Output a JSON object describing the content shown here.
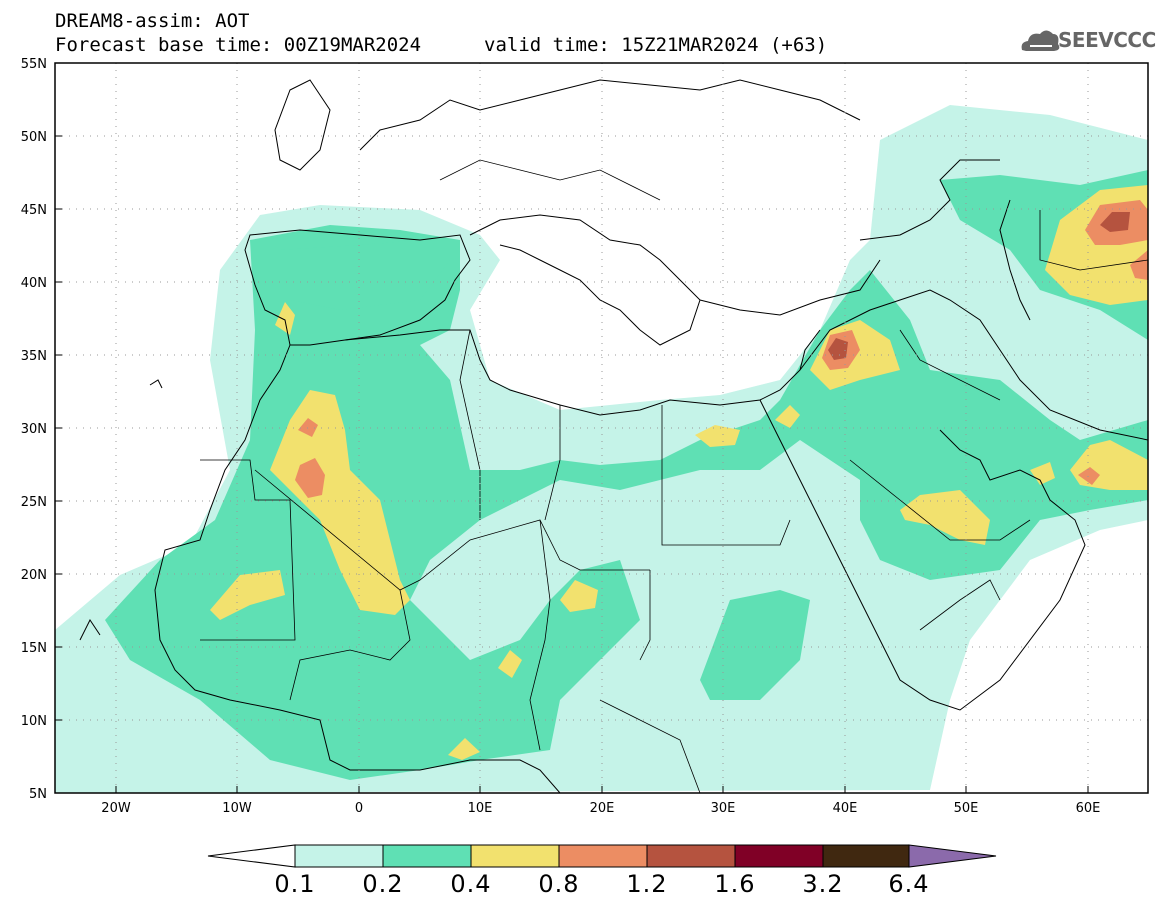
{
  "header": {
    "title": "DREAM8-assim: AOT",
    "base_time": "Forecast base time: 00Z19MAR2024",
    "valid_time": "valid time: 15Z21MAR2024 (+63)"
  },
  "logo": {
    "text": "SEEVCCC",
    "icon": "cloud-icon"
  },
  "map": {
    "lon_range": [
      -25,
      65
    ],
    "lat_range": [
      5,
      55
    ],
    "lon_ticks": [
      "20W",
      "10W",
      "0",
      "10E",
      "20E",
      "30E",
      "40E",
      "50E",
      "60E"
    ],
    "lat_ticks": [
      "55N",
      "50N",
      "45N",
      "40N",
      "35N",
      "30N",
      "25N",
      "20N",
      "15N",
      "10N",
      "5N"
    ],
    "grid": true
  },
  "colorbar": {
    "labels": [
      "0.1",
      "0.2",
      "0.4",
      "0.8",
      "1.2",
      "1.6",
      "3.2",
      "6.4"
    ],
    "colors": [
      "#c5f3e8",
      "#5fe0b4",
      "#f2e16e",
      "#ec8d63",
      "#b5533f",
      "#800026",
      "#402810",
      "#8b6aab"
    ]
  }
}
